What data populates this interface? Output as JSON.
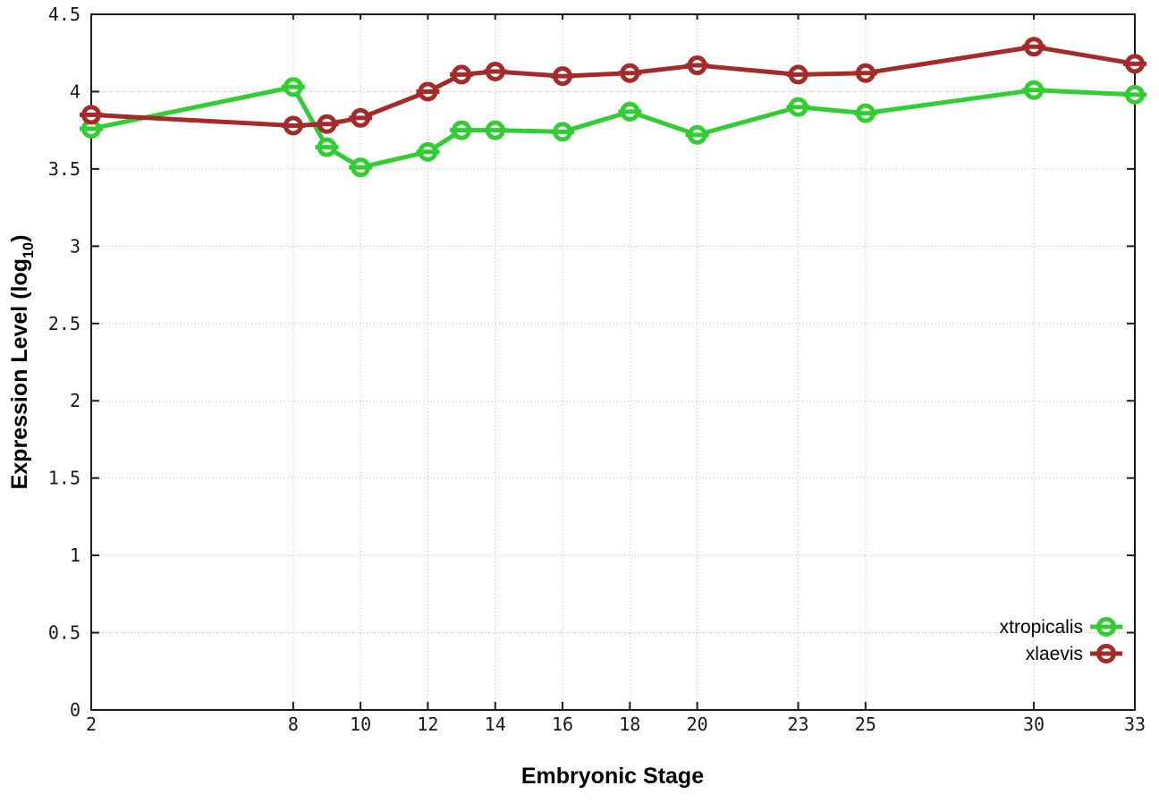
{
  "chart_data": {
    "type": "line",
    "xlabel": "Embryonic Stage",
    "ylabel": "Expression Level (log10)",
    "ylabel_parts": {
      "prefix": "Expression Level (log",
      "sub": "10",
      "suffix": ")"
    },
    "x": [
      2,
      8,
      9,
      10,
      12,
      13,
      14,
      16,
      18,
      20,
      23,
      25,
      30,
      33
    ],
    "series": [
      {
        "name": "xtropicalis",
        "color": "#32cd32",
        "values": [
          3.76,
          4.03,
          3.64,
          3.51,
          3.61,
          3.75,
          3.75,
          3.74,
          3.87,
          3.72,
          3.9,
          3.86,
          4.01,
          3.98
        ]
      },
      {
        "name": "xlaevis",
        "color": "#a52a2a",
        "values": [
          3.85,
          3.78,
          3.79,
          3.83,
          4.0,
          4.11,
          4.13,
          4.1,
          4.12,
          4.17,
          4.11,
          4.12,
          4.29,
          4.18
        ]
      }
    ],
    "xlim": [
      2,
      33
    ],
    "ylim": [
      0,
      4.5
    ],
    "xticks": [
      2,
      8,
      10,
      12,
      14,
      16,
      18,
      20,
      23,
      25,
      30,
      33
    ],
    "xtick_labels": [
      "2",
      "8",
      "10",
      "12",
      "14",
      "16",
      "18",
      "20",
      "23",
      "25",
      "30",
      "33"
    ],
    "yticks": [
      0,
      0.5,
      1,
      1.5,
      2,
      2.5,
      3,
      3.5,
      4,
      4.5
    ],
    "ytick_labels": [
      "0",
      "0.5",
      "1",
      "1.5",
      "2",
      "2.5",
      "3",
      "3.5",
      "4",
      "4.5"
    ],
    "grid": "dotted",
    "grid_color": "#b9bdc6",
    "border_color": "#1c1c1c",
    "legend_position": "bottom-right"
  }
}
